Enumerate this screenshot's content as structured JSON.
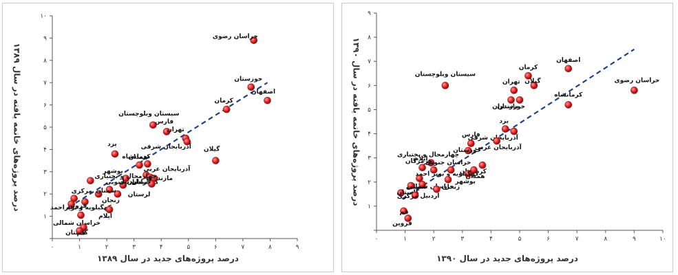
{
  "colors": {
    "point": "#e02020",
    "trend": "#1f3f8f",
    "axis": "#555555",
    "text": "#111111"
  },
  "chart_data": [
    {
      "type": "scatter",
      "xlabel": "درصد پروژه‌های جدید در سال ۱۳۸۹",
      "ylabel": "درصد پروژه‌های خاتمه یافته در سال ۱۳۸۹",
      "xlim": [
        0,
        9
      ],
      "ylim": [
        0,
        10
      ],
      "x_ticks": [
        "۰",
        "۱",
        "۲",
        "۳",
        "۴",
        "۵",
        "۶",
        "۷",
        "۸",
        "۹"
      ],
      "y_ticks": [
        "",
        "۱",
        "۲",
        "۳",
        "۴",
        "۵",
        "۶",
        "۷",
        "۸",
        "۹",
        "۱۰"
      ],
      "trendline": {
        "x": [
          0.6,
          7.9
        ],
        "y": [
          1.4,
          7.0
        ]
      },
      "points": [
        {
          "label": "خراسان رضوی",
          "x": 7.4,
          "y": 8.9
        },
        {
          "label": "خوزستان",
          "x": 7.3,
          "y": 6.8
        },
        {
          "label": "اصفهان",
          "x": 7.9,
          "y": 6.2
        },
        {
          "label": "کرمان",
          "x": 6.4,
          "y": 5.8
        },
        {
          "label": "سیستان وبلوچستان",
          "x": 3.7,
          "y": 5.1
        },
        {
          "label": "فارس",
          "x": 4.2,
          "y": 4.8
        },
        {
          "label": "تهران",
          "x": 4.9,
          "y": 4.5
        },
        {
          "label": "آذربایجان شرقی",
          "x": 4.95,
          "y": 4.35
        },
        {
          "label": "یزد",
          "x": 2.3,
          "y": 3.8
        },
        {
          "label": "گیلان",
          "x": 6.0,
          "y": 3.5
        },
        {
          "label": "کرمانشاه",
          "x": 3.5,
          "y": 3.35
        },
        {
          "label": "همدان",
          "x": 3.2,
          "y": 3.3
        },
        {
          "label": "آذربایجان غربی",
          "x": 3.45,
          "y": 2.85
        },
        {
          "label": "مازندران",
          "x": 3.6,
          "y": 2.75
        },
        {
          "label": "کردستان",
          "x": 3.75,
          "y": 2.7
        },
        {
          "label": "لرستان",
          "x": 3.65,
          "y": 2.45
        },
        {
          "label": "بوشهر",
          "x": 2.7,
          "y": 2.7
        },
        {
          "label": "چهارمحال و بختیاری",
          "x": 1.4,
          "y": 2.6
        },
        {
          "label": "اردبیل",
          "x": 2.6,
          "y": 2.4
        },
        {
          "label": "خراسان جنوبی",
          "x": 2.1,
          "y": 2.2
        },
        {
          "label": "زنجان",
          "x": 2.4,
          "y": 2.0
        },
        {
          "label": "سمنان",
          "x": 1.7,
          "y": 2.0
        },
        {
          "label": "مرکزی",
          "x": 0.8,
          "y": 1.8
        },
        {
          "label": "کهگیلویه و بویراحمد",
          "x": 1.2,
          "y": 1.65
        },
        {
          "label": "قزوین",
          "x": 0.7,
          "y": 1.55
        },
        {
          "label": "ایلام",
          "x": 2.1,
          "y": 1.3
        },
        {
          "label": "خراسان شمالی",
          "x": 1.05,
          "y": 1.05
        },
        {
          "label": "گلستان",
          "x": 1.15,
          "y": 0.5
        },
        {
          "label": "قم",
          "x": 1.0,
          "y": 0.35
        }
      ]
    },
    {
      "type": "scatter",
      "xlabel": "درصد پروژه‌های جدید در سال ۱۳۹۰",
      "ylabel": "درصد پروژه‌های خاتمه یافته در سال ۱۳۹۰",
      "xlim": [
        0,
        10
      ],
      "ylim": [
        0,
        9
      ],
      "x_ticks": [
        "۰",
        "۱",
        "۲",
        "۳",
        "۴",
        "۵",
        "۶",
        "۷",
        "۸",
        "۹",
        "۱۰"
      ],
      "y_ticks": [
        "",
        "۱",
        "۲",
        "۳",
        "۴",
        "۵",
        "۶",
        "۷",
        "۸",
        "۹"
      ],
      "trendline": {
        "x": [
          0.9,
          9.0
        ],
        "y": [
          1.3,
          7.5
        ]
      },
      "points": [
        {
          "label": "اصفهان",
          "x": 6.7,
          "y": 6.7
        },
        {
          "label": "کرمان",
          "x": 5.3,
          "y": 6.4
        },
        {
          "label": "گیلان",
          "x": 5.5,
          "y": 6.0
        },
        {
          "label": "تهران",
          "x": 4.8,
          "y": 5.8
        },
        {
          "label": "سیستان وبلوچستان",
          "x": 2.4,
          "y": 6.0
        },
        {
          "label": "مازندران",
          "x": 4.7,
          "y": 5.4
        },
        {
          "label": "خوزستان",
          "x": 5.0,
          "y": 5.4
        },
        {
          "label": "خراسان رضوی",
          "x": 9.0,
          "y": 5.8
        },
        {
          "label": "کرمانشاه",
          "x": 6.7,
          "y": 5.2
        },
        {
          "label": "یزد",
          "x": 4.5,
          "y": 4.2
        },
        {
          "label": "آذربایجان شرقی",
          "x": 4.8,
          "y": 4.1
        },
        {
          "label": "آذربایجان غربی",
          "x": 4.2,
          "y": 3.7
        },
        {
          "label": "فارس",
          "x": 3.3,
          "y": 3.6
        },
        {
          "label": "خوزستان",
          "x": 3.2,
          "y": 3.3
        },
        {
          "label": "چهارمحال و بختیاری",
          "x": 1.9,
          "y": 2.8
        },
        {
          "label": "کردستان",
          "x": 3.7,
          "y": 2.7
        },
        {
          "label": "خراسان جنوبی",
          "x": 2.6,
          "y": 2.5
        },
        {
          "label": "هرمزگان",
          "x": 2.0,
          "y": 2.5
        },
        {
          "label": "ایلام",
          "x": 1.6,
          "y": 2.6
        },
        {
          "label": "همدان",
          "x": 3.4,
          "y": 2.5
        },
        {
          "label": "بوشهر",
          "x": 3.2,
          "y": 2.35
        },
        {
          "label": "کهگیلویه و بویر احمد",
          "x": 1.5,
          "y": 2.15
        },
        {
          "label": "زنجان",
          "x": 2.5,
          "y": 2.1
        },
        {
          "label": "سمنان",
          "x": 1.6,
          "y": 1.9
        },
        {
          "label": "خراسان شمالی",
          "x": 1.2,
          "y": 1.85
        },
        {
          "label": "گلستان",
          "x": 0.85,
          "y": 1.55
        },
        {
          "label": "مرکزی",
          "x": 1.35,
          "y": 1.45
        },
        {
          "label": "اردبیل",
          "x": 2.1,
          "y": 1.7
        },
        {
          "label": "قم",
          "x": 0.95,
          "y": 0.8
        },
        {
          "label": "قزوین",
          "x": 1.1,
          "y": 0.5
        }
      ]
    }
  ]
}
